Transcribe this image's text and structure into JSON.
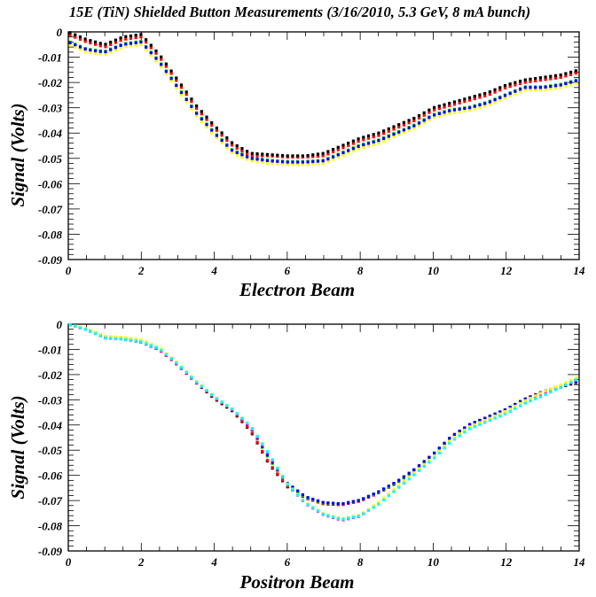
{
  "title": "15E (TiN) Shielded Button Measurements (3/16/2010, 5.3 GeV, 8 mA bunch)",
  "chart_data": [
    {
      "type": "scatter",
      "xlabel": "Electron Beam",
      "ylabel": "Signal (Volts)",
      "xlim": [
        0,
        14
      ],
      "ylim": [
        -0.09,
        0
      ],
      "xticks": [
        "0",
        "2",
        "4",
        "6",
        "8",
        "10",
        "12",
        "14"
      ],
      "yticks": [
        "0",
        "-0.01",
        "-0.02",
        "-0.03",
        "-0.04",
        "-0.05",
        "-0.06",
        "-0.07",
        "-0.08",
        "-0.09"
      ],
      "x_step": 0.5,
      "series": [
        {
          "name": "yellow",
          "color": "#ffff00",
          "values": [
            -0.005,
            -0.008,
            -0.009,
            -0.006,
            -0.005,
            -0.013,
            -0.023,
            -0.033,
            -0.041,
            -0.048,
            -0.051,
            -0.052,
            -0.0525,
            -0.0525,
            -0.052,
            -0.049,
            -0.046,
            -0.044,
            -0.041,
            -0.038,
            -0.034,
            -0.032,
            -0.031,
            -0.029,
            -0.026,
            -0.023,
            -0.023,
            -0.022,
            -0.02
          ]
        },
        {
          "name": "green",
          "color": "#00dd00",
          "values": [
            -0.0037,
            -0.0067,
            -0.0077,
            -0.0047,
            -0.0037,
            -0.0117,
            -0.0217,
            -0.0317,
            -0.0397,
            -0.0467,
            -0.0497,
            -0.0507,
            -0.0512,
            -0.0512,
            -0.0507,
            -0.0477,
            -0.0447,
            -0.0427,
            -0.0397,
            -0.0367,
            -0.0327,
            -0.0307,
            -0.0297,
            -0.0277,
            -0.0247,
            -0.0217,
            -0.0217,
            -0.0207,
            -0.0187
          ]
        },
        {
          "name": "blue",
          "color": "#0000ff",
          "values": [
            -0.004,
            -0.007,
            -0.008,
            -0.005,
            -0.004,
            -0.012,
            -0.022,
            -0.032,
            -0.04,
            -0.047,
            -0.05,
            -0.051,
            -0.0515,
            -0.0515,
            -0.051,
            -0.048,
            -0.045,
            -0.043,
            -0.04,
            -0.037,
            -0.033,
            -0.031,
            -0.03,
            -0.028,
            -0.025,
            -0.022,
            -0.022,
            -0.021,
            -0.019
          ]
        },
        {
          "name": "red",
          "color": "#ff0000",
          "values": [
            -0.001,
            -0.004,
            -0.006,
            -0.003,
            -0.002,
            -0.01,
            -0.02,
            -0.03,
            -0.038,
            -0.045,
            -0.049,
            -0.049,
            -0.0495,
            -0.0495,
            -0.049,
            -0.046,
            -0.043,
            -0.041,
            -0.038,
            -0.035,
            -0.031,
            -0.029,
            -0.027,
            -0.025,
            -0.022,
            -0.02,
            -0.019,
            -0.018,
            -0.016
          ]
        },
        {
          "name": "black",
          "color": "#000000",
          "values": [
            0,
            -0.003,
            -0.005,
            -0.002,
            -0.001,
            -0.009,
            -0.019,
            -0.029,
            -0.037,
            -0.044,
            -0.048,
            -0.0485,
            -0.049,
            -0.049,
            -0.048,
            -0.045,
            -0.042,
            -0.04,
            -0.037,
            -0.034,
            -0.03,
            -0.028,
            -0.026,
            -0.024,
            -0.021,
            -0.019,
            -0.018,
            -0.017,
            -0.015
          ]
        }
      ]
    },
    {
      "type": "scatter",
      "xlabel": "Positron Beam",
      "ylabel": "Signal (Volts)",
      "xlim": [
        0,
        14
      ],
      "ylim": [
        -0.09,
        0
      ],
      "xticks": [
        "0",
        "2",
        "4",
        "6",
        "8",
        "10",
        "12",
        "14"
      ],
      "yticks": [
        "0",
        "-0.01",
        "-0.02",
        "-0.03",
        "-0.04",
        "-0.05",
        "-0.06",
        "-0.07",
        "-0.08",
        "-0.09"
      ],
      "x_step": 0.5,
      "series": [
        {
          "name": "black",
          "color": "#000000",
          "values": [
            0,
            -0.0022,
            -0.005,
            -0.0055,
            -0.007,
            -0.0102,
            -0.0162,
            -0.0232,
            -0.0295,
            -0.0345,
            -0.0425,
            -0.0555,
            -0.0645,
            -0.069,
            -0.0712,
            -0.0715,
            -0.07,
            -0.067,
            -0.063,
            -0.058,
            -0.052,
            -0.045,
            -0.04,
            -0.037,
            -0.034,
            -0.03,
            -0.027,
            -0.025,
            -0.0228
          ]
        },
        {
          "name": "red",
          "color": "#ff0000",
          "values": [
            0,
            -0.002,
            -0.005,
            -0.0056,
            -0.007,
            -0.0101,
            -0.0161,
            -0.0231,
            -0.0292,
            -0.0342,
            -0.0422,
            -0.0552,
            -0.0642,
            -0.069,
            -0.0714,
            -0.0717,
            -0.0702,
            -0.067,
            -0.0628,
            -0.0578,
            -0.0518,
            -0.0448,
            -0.04,
            -0.0368,
            -0.0338,
            -0.0298,
            -0.0268,
            -0.0248,
            -0.0225
          ]
        },
        {
          "name": "green",
          "color": "#00dd00",
          "values": [
            0,
            -0.002,
            -0.005,
            -0.0055,
            -0.007,
            -0.01,
            -0.016,
            -0.023,
            -0.029,
            -0.034,
            -0.041,
            -0.0535,
            -0.0635,
            -0.0688,
            -0.071,
            -0.0713,
            -0.0698,
            -0.0668,
            -0.0628,
            -0.0578,
            -0.0518,
            -0.0448,
            -0.0398,
            -0.0368,
            -0.0338,
            -0.0298,
            -0.0268,
            -0.0248,
            -0.0222
          ]
        },
        {
          "name": "blue",
          "color": "#0000ff",
          "values": [
            0,
            -0.002,
            -0.005,
            -0.0055,
            -0.007,
            -0.01,
            -0.016,
            -0.023,
            -0.029,
            -0.034,
            -0.041,
            -0.053,
            -0.063,
            -0.0685,
            -0.0708,
            -0.0713,
            -0.0698,
            -0.0665,
            -0.0625,
            -0.0575,
            -0.0515,
            -0.0445,
            -0.0398,
            -0.0368,
            -0.0338,
            -0.0298,
            -0.0268,
            -0.0248,
            -0.0222
          ]
        },
        {
          "name": "magenta",
          "color": "#ff00ff",
          "values": [
            0,
            -0.002,
            -0.0055,
            -0.006,
            -0.0072,
            -0.0102,
            -0.016,
            -0.023,
            -0.029,
            -0.034,
            -0.041,
            -0.052,
            -0.0635,
            -0.0712,
            -0.0757,
            -0.0778,
            -0.0762,
            -0.0712,
            -0.0652,
            -0.0592,
            -0.0532,
            -0.0462,
            -0.0412,
            -0.0382,
            -0.0352,
            -0.0312,
            -0.0277,
            -0.0247,
            -0.0215
          ]
        },
        {
          "name": "yellow",
          "color": "#ffff00",
          "values": [
            0,
            -0.0018,
            -0.0048,
            -0.0052,
            -0.0062,
            -0.0095,
            -0.0155,
            -0.0225,
            -0.0287,
            -0.0337,
            -0.0405,
            -0.0515,
            -0.0632,
            -0.0708,
            -0.0753,
            -0.0772,
            -0.0757,
            -0.0707,
            -0.0647,
            -0.0587,
            -0.0527,
            -0.0457,
            -0.0407,
            -0.0377,
            -0.0345,
            -0.0305,
            -0.027,
            -0.024,
            -0.0208
          ]
        },
        {
          "name": "cyan",
          "color": "#00ffff",
          "values": [
            0,
            -0.0022,
            -0.0055,
            -0.006,
            -0.007,
            -0.0098,
            -0.0158,
            -0.0228,
            -0.0288,
            -0.0338,
            -0.0405,
            -0.0515,
            -0.0635,
            -0.071,
            -0.0755,
            -0.0775,
            -0.076,
            -0.0715,
            -0.0655,
            -0.0595,
            -0.0535,
            -0.0465,
            -0.0415,
            -0.0385,
            -0.0355,
            -0.0315,
            -0.0285,
            -0.025,
            -0.0215
          ]
        }
      ]
    }
  ]
}
